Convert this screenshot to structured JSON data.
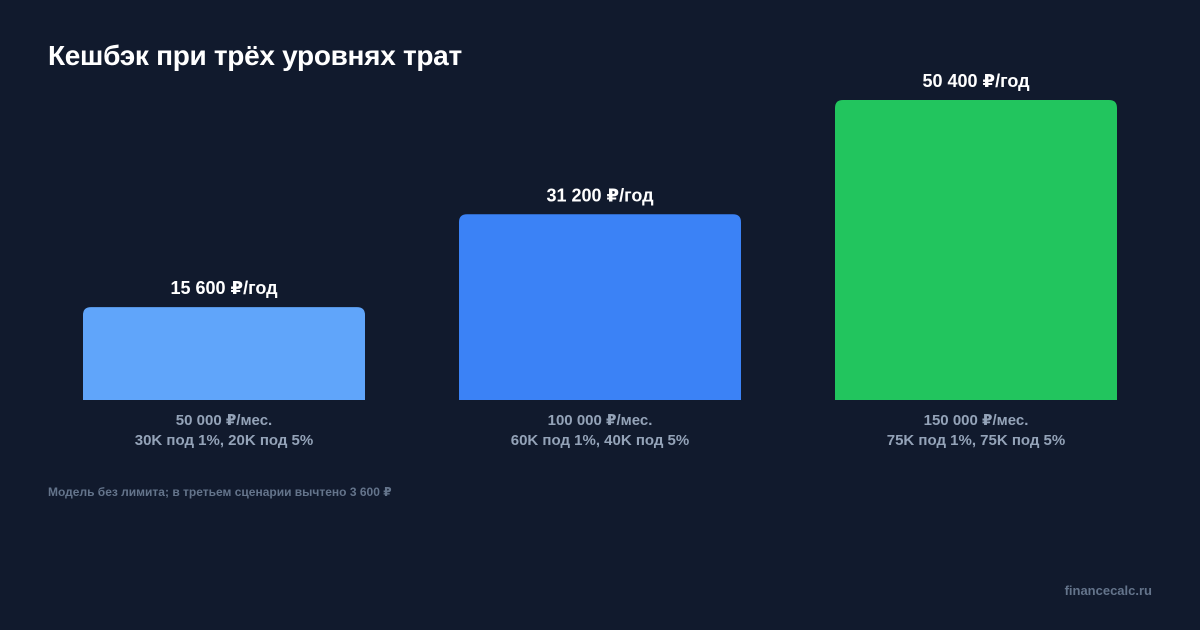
{
  "title": "Кешбэк при трёх уровнях трат",
  "footnote": "Модель без лимита; в третьем сценарии вычтено 3 600 ₽",
  "brand": "financecalc.ru",
  "chart_data": {
    "type": "bar",
    "title": "Кешбэк при трёх уровнях трат",
    "categories": [
      [
        "50 000 ₽/мес.",
        "30K под 1%, 20K под 5%"
      ],
      [
        "100 000 ₽/мес.",
        "60K под 1%, 40K под 5%"
      ],
      [
        "150 000 ₽/мес.",
        "75K под 1%, 75K под 5%"
      ]
    ],
    "values": [
      15600,
      31200,
      50400
    ],
    "value_labels": [
      "15 600 ₽/год",
      "31 200 ₽/год",
      "50 400 ₽/год"
    ],
    "colors": [
      "#60a5fa",
      "#3b82f6",
      "#22c55e"
    ],
    "ylim": [
      0,
      50400
    ],
    "grid": false,
    "legend": "none"
  }
}
